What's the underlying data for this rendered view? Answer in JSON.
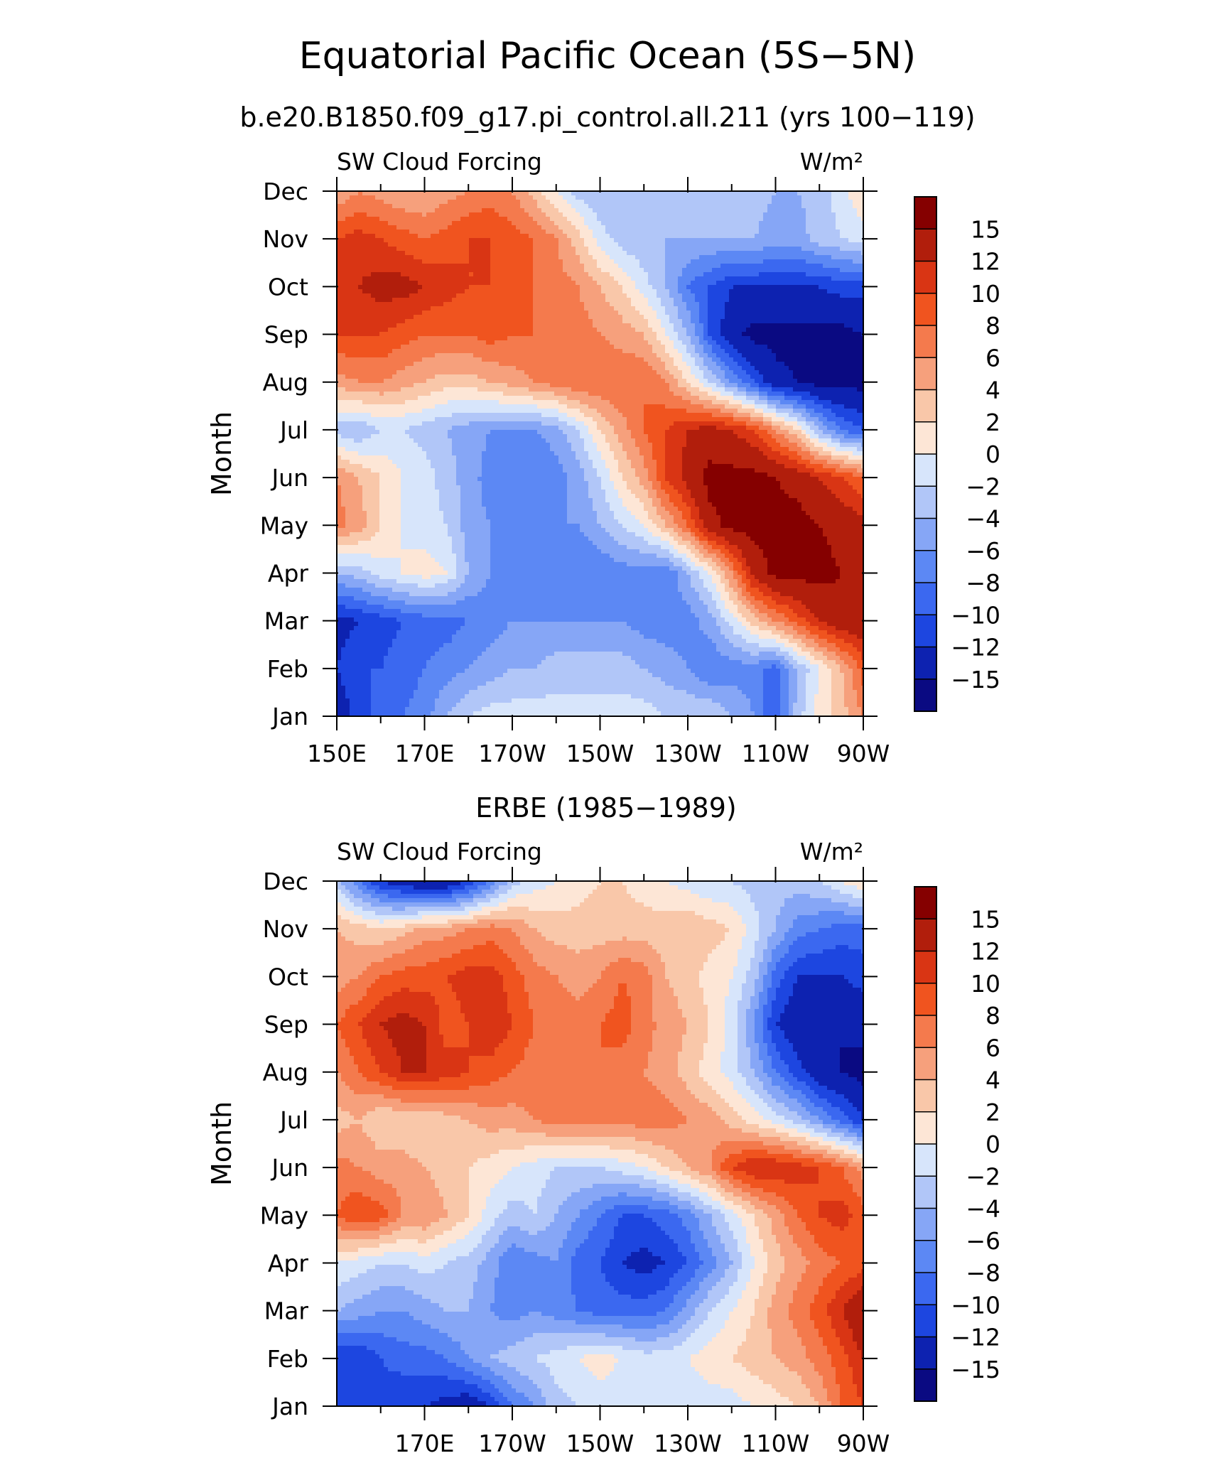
{
  "figure": {
    "title": "Equatorial Pacific Ocean (5S−5N)",
    "subtitle": "b.e20.B1850.f09_g17.pi_control.all.211 (yrs 100−119)",
    "panel2_title": "ERBE (1985−1989)"
  },
  "chart_data": [
    {
      "type": "heatmap",
      "variable_label": "SW Cloud Forcing",
      "units_label": "W/m²",
      "ylabel": "Month",
      "yticks": [
        "Jan",
        "Feb",
        "Mar",
        "Apr",
        "May",
        "Jun",
        "Jul",
        "Aug",
        "Sep",
        "Oct",
        "Nov",
        "Dec"
      ],
      "xticks": [
        "150E",
        "170E",
        "170W",
        "150W",
        "130W",
        "110W",
        "90W"
      ],
      "xlim_deg_east": [
        150,
        270
      ],
      "levels": [
        -15,
        -12,
        -10,
        -8,
        -6,
        -4,
        -2,
        0,
        2,
        4,
        6,
        8,
        10,
        12,
        15
      ],
      "colorbar_labels": [
        "15",
        "12",
        "10",
        "8",
        "6",
        "4",
        "2",
        "0",
        "−2",
        "−4",
        "−6",
        "−8",
        "−10",
        "−12",
        "−15"
      ],
      "colors": [
        "#0a0a82",
        "#0d22b0",
        "#1d46e0",
        "#3b68f0",
        "#5c88f4",
        "#86a6f6",
        "#b1c6f8",
        "#d7e5fb",
        "#fde6d6",
        "#f9c7a9",
        "#f6a07c",
        "#f47a4d",
        "#f0541f",
        "#d93514",
        "#b11e0c",
        "#850000"
      ],
      "x_deg_east": [
        150,
        155,
        160,
        165,
        170,
        175,
        180,
        185,
        190,
        195,
        200,
        205,
        210,
        215,
        220,
        225,
        230,
        235,
        240,
        245,
        250,
        255,
        260,
        265,
        270
      ],
      "months": [
        "Jan",
        "Feb",
        "Mar",
        "Apr",
        "May",
        "Jun",
        "Jul",
        "Aug",
        "Sep",
        "Oct",
        "Nov",
        "Dec"
      ],
      "z": [
        [
          -14,
          -11,
          -9,
          -8,
          -7,
          -4,
          -2,
          -1,
          -1,
          -1,
          -1,
          -1,
          -1,
          -1,
          -1,
          -2,
          -2,
          -2,
          -4,
          -6,
          -10,
          -3,
          1,
          3,
          6
        ],
        [
          -12,
          -10,
          -10,
          -9,
          -8,
          -7,
          -6,
          -5,
          -4,
          -4,
          -3,
          -3,
          -3,
          -3,
          -4,
          -5,
          -6,
          -8,
          -7,
          -7,
          -9,
          -4,
          0,
          4,
          9
        ],
        [
          -13,
          -12,
          -11,
          -10,
          -9,
          -9,
          -8,
          -7,
          -6,
          -6,
          -6,
          -6,
          -6,
          -6,
          -7,
          -7,
          -7,
          -5,
          -1,
          3,
          6,
          9,
          12,
          14,
          14
        ],
        [
          -4,
          -3,
          -1,
          0,
          1,
          0,
          -4,
          -6,
          -6,
          -7,
          -7,
          -8,
          -8,
          -7,
          -7,
          -8,
          -4,
          0,
          6,
          13,
          16,
          16,
          16,
          15,
          14
        ],
        [
          7,
          5,
          2,
          0,
          -1,
          -2,
          -5,
          -6,
          -7,
          -7,
          -6,
          -6,
          -4,
          -2,
          0,
          4,
          8,
          14,
          16,
          16,
          16,
          16,
          15,
          14,
          13
        ],
        [
          6,
          4,
          2,
          0,
          -1,
          -3,
          -5,
          -7,
          -8,
          -8,
          -7,
          -5,
          -2,
          2,
          5,
          10,
          13,
          16,
          16,
          16,
          15,
          14,
          12,
          10,
          8
        ],
        [
          -3,
          -4,
          -2,
          -2,
          -3,
          -4,
          -5,
          -6,
          -6,
          -6,
          -5,
          -2,
          2,
          5,
          8,
          10,
          12,
          13,
          12,
          10,
          6,
          2,
          -4,
          -8,
          -10
        ],
        [
          5,
          6,
          6,
          5,
          4,
          3,
          3,
          4,
          5,
          6,
          7,
          8,
          8,
          8,
          8,
          6,
          2,
          -2,
          -6,
          -10,
          -14,
          -15,
          -16,
          -16,
          -16
        ],
        [
          10,
          10,
          10,
          9,
          8,
          8,
          8,
          9,
          8,
          8,
          8,
          7,
          6,
          5,
          4,
          0,
          -4,
          -10,
          -14,
          -16,
          -16,
          -16,
          -16,
          -16,
          -15
        ],
        [
          11,
          12,
          13,
          13,
          12,
          11,
          10,
          10,
          9,
          8,
          7,
          6,
          4,
          2,
          -1,
          -4,
          -8,
          -10,
          -12,
          -12,
          -12,
          -12,
          -12,
          -11,
          -11
        ],
        [
          10,
          11,
          10,
          9,
          8,
          9,
          10,
          10,
          9,
          8,
          6,
          3,
          -1,
          -3,
          -4,
          -4,
          -4,
          -4,
          -4,
          -4,
          -5,
          -5,
          -3,
          -2,
          -1
        ],
        [
          4,
          6,
          5,
          4,
          4,
          5,
          6,
          7,
          6,
          3,
          0,
          -3,
          -4,
          -4,
          -3,
          -3,
          -4,
          -3,
          -3,
          -3,
          -4,
          -4,
          -3,
          -1,
          2
        ]
      ]
    },
    {
      "type": "heatmap",
      "variable_label": "SW Cloud Forcing",
      "units_label": "W/m²",
      "ylabel": "Month",
      "yticks": [
        "Jan",
        "Feb",
        "Mar",
        "Apr",
        "May",
        "Jun",
        "Jul",
        "Aug",
        "Sep",
        "Oct",
        "Nov",
        "Dec"
      ],
      "xticks": [
        "170E",
        "170W",
        "150W",
        "130W",
        "110W",
        "90W"
      ],
      "xlim_deg_east": [
        150,
        270
      ],
      "levels": [
        -15,
        -12,
        -10,
        -8,
        -6,
        -4,
        -2,
        0,
        2,
        4,
        6,
        8,
        10,
        12,
        15
      ],
      "colorbar_labels": [
        "15",
        "12",
        "10",
        "8",
        "6",
        "4",
        "2",
        "0",
        "−2",
        "−4",
        "−6",
        "−8",
        "−10",
        "−12",
        "−15"
      ],
      "colors": [
        "#0a0a82",
        "#0d22b0",
        "#1d46e0",
        "#3b68f0",
        "#5c88f4",
        "#86a6f6",
        "#b1c6f8",
        "#d7e5fb",
        "#fde6d6",
        "#f9c7a9",
        "#f6a07c",
        "#f47a4d",
        "#f0541f",
        "#d93514",
        "#b11e0c",
        "#850000"
      ],
      "x_deg_east": [
        150,
        155,
        160,
        165,
        170,
        175,
        180,
        185,
        190,
        195,
        200,
        205,
        210,
        215,
        220,
        225,
        230,
        235,
        240,
        245,
        250,
        255,
        260,
        265,
        270
      ],
      "months": [
        "Jan",
        "Feb",
        "Mar",
        "Apr",
        "May",
        "Jun",
        "Jul",
        "Aug",
        "Sep",
        "Oct",
        "Nov",
        "Dec"
      ],
      "z": [
        [
          -12,
          -10,
          -11,
          -12,
          -12,
          -13,
          -14,
          -12,
          -8,
          -6,
          -3,
          -2,
          -1,
          -2,
          -2,
          -1,
          -1,
          -1,
          -1,
          0,
          1,
          2,
          4,
          8,
          10
        ],
        [
          -12,
          -12,
          -10,
          -9,
          -9,
          -8,
          -6,
          -4,
          -3,
          -2,
          -1,
          0,
          1,
          0,
          -1,
          -1,
          0,
          1,
          2,
          3,
          4,
          5,
          7,
          9,
          12
        ],
        [
          -4,
          -5,
          -6,
          -6,
          -5,
          -4,
          -4,
          -6,
          -7,
          -6,
          -7,
          -8,
          -9,
          -9,
          -9,
          -8,
          -5,
          -2,
          0,
          2,
          5,
          7,
          9,
          12,
          15
        ],
        [
          0,
          -1,
          -2,
          -2,
          -1,
          -2,
          -3,
          -5,
          -8,
          -7,
          -6,
          -9,
          -10,
          -12,
          -13,
          -12,
          -10,
          -7,
          -4,
          0,
          3,
          5,
          7,
          8,
          9
        ],
        [
          8,
          10,
          9,
          6,
          6,
          4,
          2,
          -1,
          -3,
          -2,
          -4,
          -6,
          -8,
          -10,
          -10,
          -9,
          -7,
          -4,
          -1,
          2,
          5,
          8,
          10,
          11,
          9
        ],
        [
          7,
          6,
          5,
          5,
          4,
          3,
          2,
          1,
          0,
          -1,
          -2,
          -2,
          -2,
          -1,
          0,
          2,
          4,
          6,
          10,
          12,
          12,
          11,
          10,
          8,
          5
        ],
        [
          3,
          4,
          2,
          2,
          2,
          3,
          4,
          5,
          5,
          6,
          7,
          7,
          7,
          7,
          7,
          7,
          6,
          5,
          3,
          1,
          -1,
          -3,
          -6,
          -9,
          -12
        ],
        [
          6,
          8,
          10,
          12,
          12,
          11,
          10,
          9,
          8,
          7,
          7,
          8,
          8,
          7,
          6,
          5,
          3,
          1,
          -1,
          -4,
          -8,
          -11,
          -14,
          -15,
          -16
        ],
        [
          8,
          10,
          12,
          13,
          12,
          9,
          10,
          12,
          10,
          8,
          8,
          7,
          8,
          9,
          7,
          5,
          4,
          2,
          -1,
          -6,
          -12,
          -14,
          -15,
          -15,
          -14
        ],
        [
          5,
          6,
          8,
          9,
          9,
          10,
          11,
          11,
          9,
          7,
          6,
          5,
          6,
          8,
          7,
          4,
          3,
          1,
          0,
          -3,
          -9,
          -12,
          -12,
          -12,
          -11
        ],
        [
          4,
          3,
          2,
          3,
          5,
          5,
          6,
          7,
          6,
          4,
          3,
          3,
          3,
          3,
          3,
          3,
          4,
          3,
          2,
          -1,
          -4,
          -7,
          -8,
          -9,
          -9
        ],
        [
          -3,
          -8,
          -12,
          -14,
          -15,
          -15,
          -12,
          -8,
          -3,
          -1,
          0,
          1,
          2,
          2,
          1,
          0,
          -1,
          -2,
          -2,
          -3,
          -3,
          -3,
          -2,
          0,
          2
        ]
      ]
    }
  ]
}
